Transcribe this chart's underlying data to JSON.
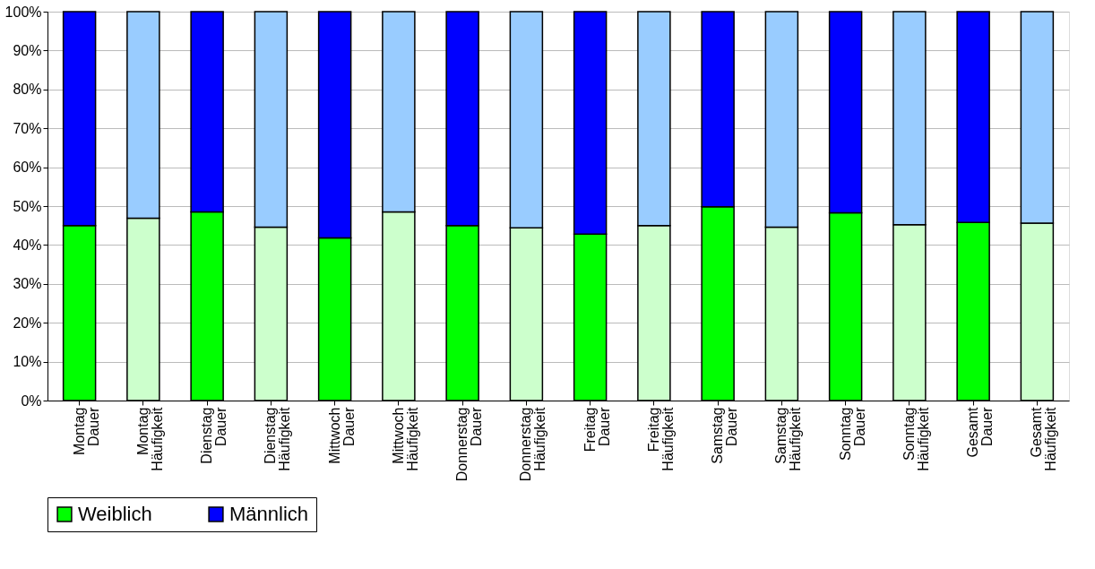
{
  "chart_data": {
    "type": "bar",
    "stacked": true,
    "categories": [
      "Montag Dauer",
      "Montag Häufigkeit",
      "Dienstag Dauer",
      "Dienstag Häufigkeit",
      "Mittwoch Dauer",
      "Mittwoch Häufigkeit",
      "Donnerstag Dauer",
      "Donnerstag Häufigkeit",
      "Freitag Dauer",
      "Freitag Häufigkeit",
      "Samstag Dauer",
      "Samstag Häufigkeit",
      "Sonntag Dauer",
      "Sonntag Häufigkeit",
      "Gesamt Dauer",
      "Gesamt Häufigkeit"
    ],
    "series": [
      {
        "name": "Weiblich",
        "color": "#00ff00",
        "colors": [
          "#00ff00",
          "#ccffcc",
          "#00ff00",
          "#ccffcc",
          "#00ff00",
          "#ccffcc",
          "#00ff00",
          "#ccffcc",
          "#00ff00",
          "#ccffcc",
          "#00ff00",
          "#ccffcc",
          "#00ff00",
          "#ccffcc",
          "#00ff00",
          "#ccffcc"
        ],
        "values": [
          45.0,
          46.9,
          48.5,
          44.6,
          41.8,
          48.5,
          45.0,
          44.4,
          42.8,
          45.0,
          49.8,
          44.6,
          48.3,
          45.2,
          45.8,
          45.6
        ]
      },
      {
        "name": "Männlich",
        "color": "#0000ff",
        "colors": [
          "#0000ff",
          "#99ccff",
          "#0000ff",
          "#99ccff",
          "#0000ff",
          "#99ccff",
          "#0000ff",
          "#99ccff",
          "#0000ff",
          "#99ccff",
          "#0000ff",
          "#99ccff",
          "#0000ff",
          "#99ccff",
          "#0000ff",
          "#99ccff"
        ],
        "values": [
          55.0,
          53.1,
          51.5,
          55.4,
          58.2,
          51.5,
          55.0,
          55.6,
          57.2,
          55.0,
          50.2,
          55.4,
          51.7,
          54.8,
          54.2,
          54.4
        ]
      }
    ],
    "ylim": [
      0,
      100
    ],
    "yticks": [
      {
        "value": 0,
        "label": "0%"
      },
      {
        "value": 10,
        "label": "10%"
      },
      {
        "value": 20,
        "label": "20%"
      },
      {
        "value": 30,
        "label": "30%"
      },
      {
        "value": 40,
        "label": "40%"
      },
      {
        "value": 50,
        "label": "50%"
      },
      {
        "value": 60,
        "label": "60%"
      },
      {
        "value": 70,
        "label": "70%"
      },
      {
        "value": 80,
        "label": "80%"
      },
      {
        "value": 90,
        "label": "90%"
      },
      {
        "value": 100,
        "label": "100%"
      }
    ],
    "grid": "y",
    "legend": "bottom"
  }
}
